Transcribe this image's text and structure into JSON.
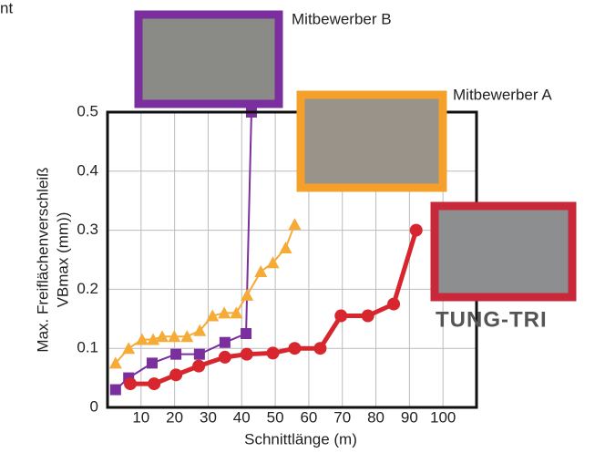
{
  "header_fragment": "nt",
  "chart_data": {
    "type": "line",
    "x_label": "Schnittlänge (m)",
    "y_label": [
      "Max. Freiflächenverschleiß",
      "VBmax (mm))"
    ],
    "xlim": [
      0,
      110
    ],
    "xticks": [
      10,
      20,
      30,
      40,
      50,
      60,
      70,
      80,
      90,
      100
    ],
    "ylim": [
      0,
      0.5
    ],
    "yticks": [
      0,
      0.1,
      0.2,
      0.3,
      0.4,
      0.5
    ],
    "grid": true,
    "series": [
      {
        "name": "Mitbewerber B",
        "color": "#7b2f9e",
        "marker": "square",
        "x": [
          2.4,
          6.3,
          13.3,
          20.4,
          27.4,
          35,
          41.3,
          42.9
        ],
        "values": [
          0.03,
          0.05,
          0.075,
          0.09,
          0.09,
          0.11,
          0.125,
          0.5
        ]
      },
      {
        "name": "Mitbewerber A",
        "color": "#f5ab35",
        "marker": "triangle",
        "x": [
          2.4,
          6.3,
          10.3,
          13.6,
          16.3,
          19.9,
          23.7,
          27.5,
          31.3,
          34.8,
          38.4,
          41.6,
          45.7,
          49.3,
          53.1,
          55.8
        ],
        "values": [
          0.075,
          0.1,
          0.115,
          0.115,
          0.12,
          0.12,
          0.12,
          0.13,
          0.155,
          0.16,
          0.16,
          0.19,
          0.23,
          0.245,
          0.27,
          0.31
        ]
      },
      {
        "name": "TUNG-TRI",
        "color": "#d7262d",
        "marker": "circle",
        "x": [
          6.8,
          13.9,
          20.4,
          27.2,
          35,
          41.5,
          49.3,
          55.8,
          63.4,
          69.6,
          77.6,
          85.3,
          92
        ],
        "values": [
          0.04,
          0.04,
          0.055,
          0.07,
          0.085,
          0.09,
          0.092,
          0.1,
          0.1,
          0.155,
          0.155,
          0.175,
          0.3
        ]
      }
    ]
  }
}
